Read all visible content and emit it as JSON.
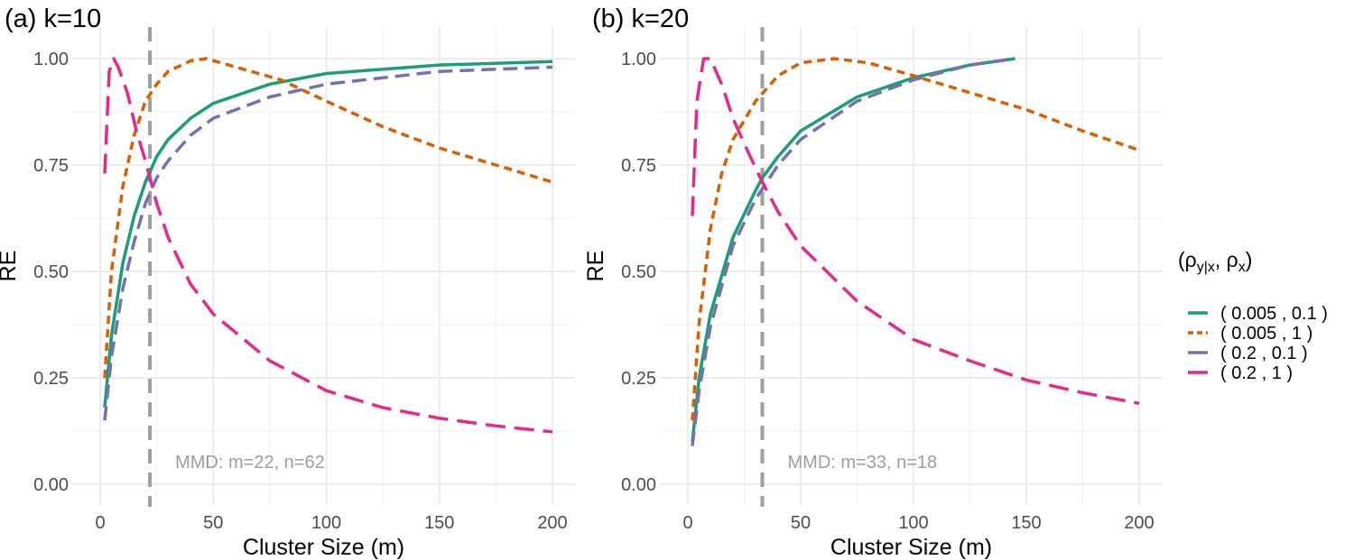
{
  "legend": {
    "title": "(ρy|x, ρx)",
    "title_parts": [
      "(ρ",
      "y|x",
      ", ρ",
      "x",
      ")"
    ],
    "entries": [
      "( 0.005 ,  0.1 )",
      "( 0.005 ,  1 )",
      "( 0.2 ,  0.1 )",
      "( 0.2 ,  1 )"
    ],
    "colors": [
      "#1b9e77",
      "#d95f02",
      "#7570b3",
      "#e7298a"
    ],
    "placement": "right"
  },
  "chart_data": [
    {
      "type": "line",
      "title": "(a) k=10",
      "xlabel": "Cluster Size (m)",
      "ylabel": "RE",
      "xlim": [
        -6,
        210
      ],
      "ylim": [
        -0.05,
        1.05
      ],
      "xticks": [
        0,
        50,
        100,
        150,
        200
      ],
      "yticks": [
        0,
        0.25,
        0.5,
        0.75,
        1
      ],
      "ytick_labels": [
        "0.00",
        "0.25",
        "0.50",
        "0.75",
        "1.00"
      ],
      "vline": 22,
      "annotation": "MMD: m=22, n=62",
      "grid": true,
      "series": [
        {
          "name": "( 0.005 ,  0.1 )",
          "x": [
            2,
            5,
            10,
            15,
            20,
            25,
            30,
            40,
            50,
            75,
            100,
            150,
            200
          ],
          "y": [
            0.18,
            0.35,
            0.52,
            0.63,
            0.71,
            0.77,
            0.81,
            0.86,
            0.895,
            0.94,
            0.965,
            0.985,
            0.993
          ]
        },
        {
          "name": "( 0.005 ,  1 )",
          "x": [
            2,
            5,
            10,
            15,
            20,
            25,
            30,
            40,
            47,
            60,
            80,
            100,
            125,
            150,
            175,
            200
          ],
          "y": [
            0.25,
            0.5,
            0.7,
            0.82,
            0.9,
            0.94,
            0.97,
            0.995,
            1.0,
            0.98,
            0.95,
            0.9,
            0.84,
            0.79,
            0.75,
            0.71
          ]
        },
        {
          "name": "( 0.2 ,  0.1 )",
          "x": [
            2,
            5,
            10,
            15,
            20,
            25,
            30,
            40,
            50,
            75,
            100,
            150,
            200
          ],
          "y": [
            0.15,
            0.3,
            0.46,
            0.57,
            0.66,
            0.72,
            0.76,
            0.82,
            0.86,
            0.91,
            0.94,
            0.97,
            0.98
          ]
        },
        {
          "name": "( 0.2 ,  1 )",
          "x": [
            2,
            4,
            6,
            8,
            12,
            16,
            20,
            25,
            30,
            40,
            50,
            75,
            100,
            125,
            150,
            175,
            200
          ],
          "y": [
            0.73,
            0.97,
            1.0,
            0.98,
            0.92,
            0.83,
            0.76,
            0.66,
            0.58,
            0.47,
            0.4,
            0.29,
            0.22,
            0.18,
            0.155,
            0.137,
            0.123
          ]
        }
      ]
    },
    {
      "type": "line",
      "title": "(b) k=20",
      "xlabel": "Cluster Size (m)",
      "ylabel": "RE",
      "xlim": [
        -6,
        210
      ],
      "ylim": [
        -0.05,
        1.05
      ],
      "xticks": [
        0,
        50,
        100,
        150,
        200
      ],
      "yticks": [
        0,
        0.25,
        0.5,
        0.75,
        1
      ],
      "ytick_labels": [
        "0.00",
        "0.25",
        "0.50",
        "0.75",
        "1.00"
      ],
      "vline": 33,
      "annotation": "MMD: m=33, n=18",
      "grid": true,
      "series": [
        {
          "name": "( 0.005 ,  0.1 )",
          "x": [
            2,
            5,
            10,
            20,
            30,
            33,
            40,
            50,
            75,
            100,
            125,
            145
          ],
          "y": [
            0.1,
            0.25,
            0.4,
            0.58,
            0.69,
            0.72,
            0.77,
            0.83,
            0.91,
            0.955,
            0.985,
            1.0
          ]
        },
        {
          "name": "( 0.005 ,  1 )",
          "x": [
            2,
            5,
            10,
            15,
            20,
            30,
            40,
            50,
            65,
            80,
            100,
            125,
            150,
            175,
            200
          ],
          "y": [
            0.15,
            0.38,
            0.6,
            0.73,
            0.81,
            0.9,
            0.96,
            0.99,
            1.0,
            0.99,
            0.96,
            0.92,
            0.88,
            0.83,
            0.785
          ]
        },
        {
          "name": "( 0.2 ,  0.1 )",
          "x": [
            2,
            5,
            10,
            20,
            30,
            40,
            50,
            75,
            100,
            125,
            145
          ],
          "y": [
            0.09,
            0.22,
            0.37,
            0.56,
            0.67,
            0.75,
            0.81,
            0.9,
            0.95,
            0.985,
            1.0
          ]
        },
        {
          "name": "( 0.2 ,  1 )",
          "x": [
            2,
            4,
            7,
            10,
            15,
            20,
            25,
            33,
            40,
            50,
            75,
            100,
            125,
            150,
            175,
            200
          ],
          "y": [
            0.63,
            0.9,
            1.0,
            1.0,
            0.94,
            0.86,
            0.8,
            0.71,
            0.64,
            0.56,
            0.43,
            0.34,
            0.29,
            0.245,
            0.215,
            0.19
          ]
        }
      ]
    }
  ]
}
